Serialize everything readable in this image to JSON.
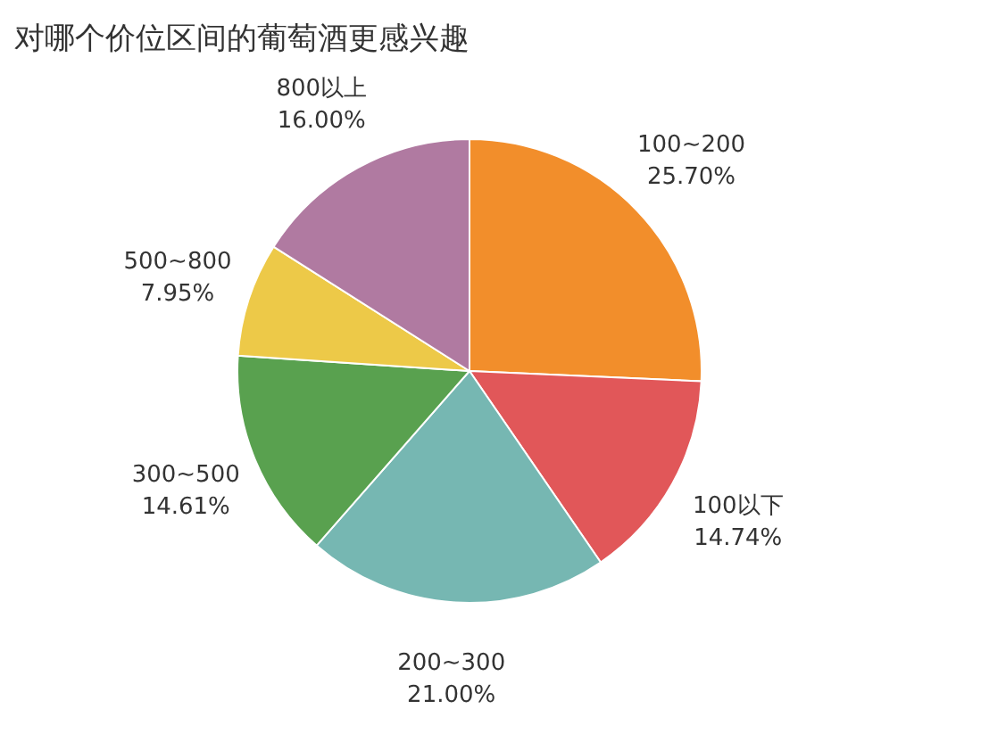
{
  "chart_data": {
    "type": "pie",
    "title": "对哪个价位区间的葡萄酒更感兴趣",
    "categories": [
      "100~200",
      "100以下",
      "200~300",
      "300~500",
      "500~800",
      "800以上"
    ],
    "values": [
      25.7,
      14.74,
      21.0,
      14.61,
      7.95,
      16.0
    ],
    "colors": [
      "#f28e2b",
      "#e15759",
      "#76b7b2",
      "#59a14f",
      "#edc948",
      "#b07aa1"
    ],
    "value_labels": [
      "25.70%",
      "14.74%",
      "21.00%",
      "14.61%",
      "7.95%",
      "16.00%"
    ]
  }
}
